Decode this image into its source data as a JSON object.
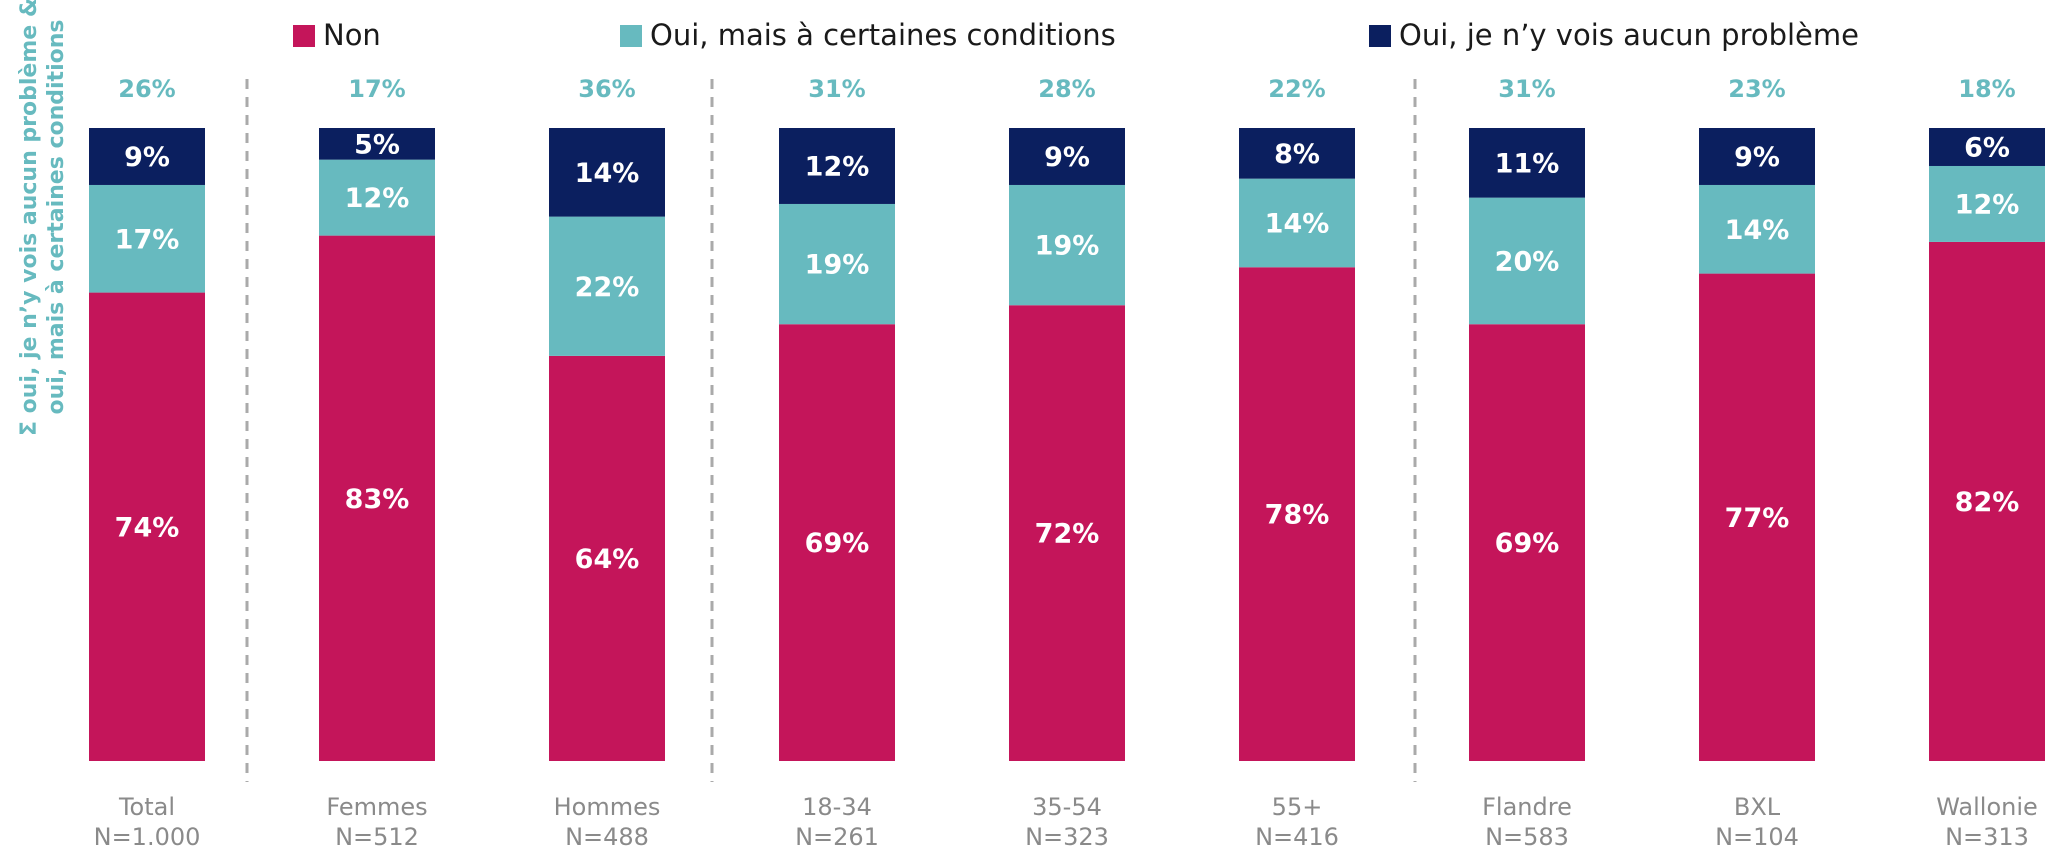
{
  "chart_data": {
    "type": "stacked_bar",
    "y_label": [
      "Σ oui, je n’y vois aucun problème &",
      "oui, mais à certaines conditions"
    ],
    "categories": [
      "Total",
      "Femmes",
      "Hommes",
      "18-34",
      "35-54",
      "55+",
      "Flandre",
      "BXL",
      "Wallonie"
    ],
    "sample_sizes": [
      "N=1.000",
      "N=512",
      "N=488",
      "N=261",
      "N=323",
      "N=416",
      "N=583",
      "N=104",
      "N=313"
    ],
    "ylim": [
      0,
      100
    ],
    "series": [
      {
        "name": "Non",
        "color": "#c4155a",
        "values": [
          74,
          83,
          64,
          69,
          72,
          78,
          69,
          77,
          82
        ],
        "value_labels": [
          "74%",
          "83%",
          "64%",
          "69%",
          "72%",
          "78%",
          "69%",
          "77%",
          "82%"
        ]
      },
      {
        "name": "Oui, mais à certaines conditions",
        "color": "#67babf",
        "values": [
          17,
          12,
          22,
          19,
          19,
          14,
          20,
          14,
          12
        ],
        "value_labels": [
          "17%",
          "12%",
          "22%",
          "19%",
          "19%",
          "14%",
          "20%",
          "14%",
          "12%"
        ]
      },
      {
        "name": "Oui, je n’y vois aucun problème",
        "color": "#0b1f5f",
        "values": [
          9,
          5,
          14,
          12,
          9,
          8,
          11,
          9,
          6
        ],
        "value_labels": [
          "9%",
          "5%",
          "14%",
          "12%",
          "9%",
          "8%",
          "11%",
          "9%",
          "6%"
        ]
      }
    ],
    "totals": {
      "color": "#67babf",
      "values": [
        26,
        17,
        36,
        31,
        28,
        22,
        31,
        23,
        18
      ],
      "value_labels": [
        "26%",
        "17%",
        "36%",
        "31%",
        "28%",
        "22%",
        "31%",
        "23%",
        "18%"
      ]
    }
  }
}
